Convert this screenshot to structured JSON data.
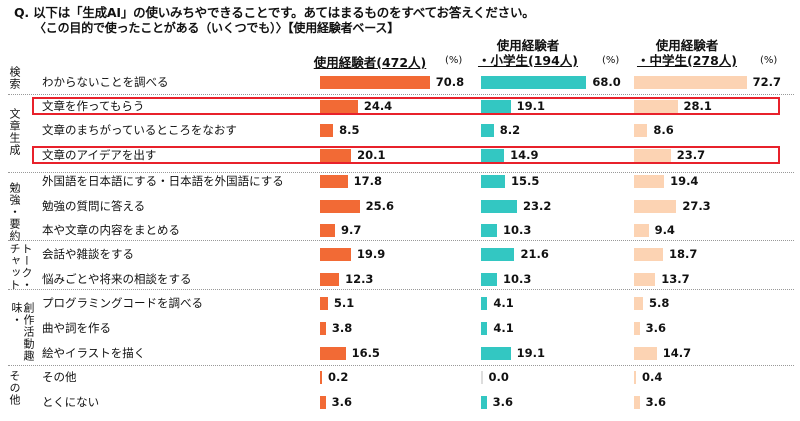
{
  "question": {
    "line1": "Q. 以下は「生成AI」の使いみちやできることです。あてはまるものをすべてお答えください。",
    "line2": "〈この目的で使ったことがある（いくつでも）〉【使用経験者ベース】"
  },
  "columns": [
    {
      "line1": "使用経験者(472人)",
      "line2": "",
      "unit": "(%)",
      "color": "#f26a35"
    },
    {
      "line1": "使用経験者",
      "line2": "・小学生(194人)",
      "unit": "(%)",
      "color": "#33c7c2"
    },
    {
      "line1": "使用経験者",
      "line2": "・中学生(278人)",
      "unit": "(%)",
      "color": "#fcd3b3"
    }
  ],
  "groups": [
    {
      "label": "検索"
    },
    {
      "label": "文章生成"
    },
    {
      "label": "勉強・要約"
    },
    {
      "label": "トーク・チャット"
    },
    {
      "label": "創作活動趣味・"
    },
    {
      "label": "その他"
    }
  ],
  "chart_data": {
    "type": "bar",
    "orientation": "horizontal",
    "categories": [
      "わからないことを調べる",
      "文章を作ってもらう",
      "文章のまちがっているところをなおす",
      "文章のアイデアを出す",
      "外国語を日本語にする・日本語を外国語にする",
      "勉強の質問に答える",
      "本や文章の内容をまとめる",
      "会話や雑談をする",
      "悩みごとや将来の相談をする",
      "プログラミングコードを調べる",
      "曲や詞を作る",
      "絵やイラストを描く",
      "その他",
      "とくにない"
    ],
    "series": [
      {
        "name": "使用経験者(472人)",
        "values": [
          70.8,
          24.4,
          8.5,
          20.1,
          17.8,
          25.6,
          9.7,
          19.9,
          12.3,
          5.1,
          3.8,
          16.5,
          0.2,
          3.6
        ]
      },
      {
        "name": "使用経験者・小学生(194人)",
        "values": [
          68.0,
          19.1,
          8.2,
          14.9,
          15.5,
          23.2,
          10.3,
          21.6,
          10.3,
          4.1,
          4.1,
          19.1,
          0.0,
          3.6
        ]
      },
      {
        "name": "使用経験者・中学生(278人)",
        "values": [
          72.7,
          28.1,
          8.6,
          23.7,
          19.4,
          27.3,
          9.4,
          18.7,
          13.7,
          5.8,
          3.6,
          14.7,
          0.4,
          3.6
        ]
      }
    ],
    "value_labels": [
      [
        "70.8",
        "24.4",
        "8.5",
        "20.1",
        "17.8",
        "25.6",
        "9.7",
        "19.9",
        "12.3",
        "5.1",
        "3.8",
        "16.5",
        "0.2",
        "3.6"
      ],
      [
        "68.0",
        "19.1",
        "8.2",
        "14.9",
        "15.5",
        "23.2",
        "10.3",
        "21.6",
        "10.3",
        "4.1",
        "4.1",
        "19.1",
        "0.0",
        "3.6"
      ],
      [
        "72.7",
        "28.1",
        "8.6",
        "23.7",
        "19.4",
        "27.3",
        "9.4",
        "18.7",
        "13.7",
        "5.8",
        "3.6",
        "14.7",
        "0.4",
        "3.6"
      ]
    ],
    "highlighted_rows": [
      1,
      3
    ],
    "highlight_color": "#e8212b",
    "xlim": [
      0,
      100
    ]
  }
}
